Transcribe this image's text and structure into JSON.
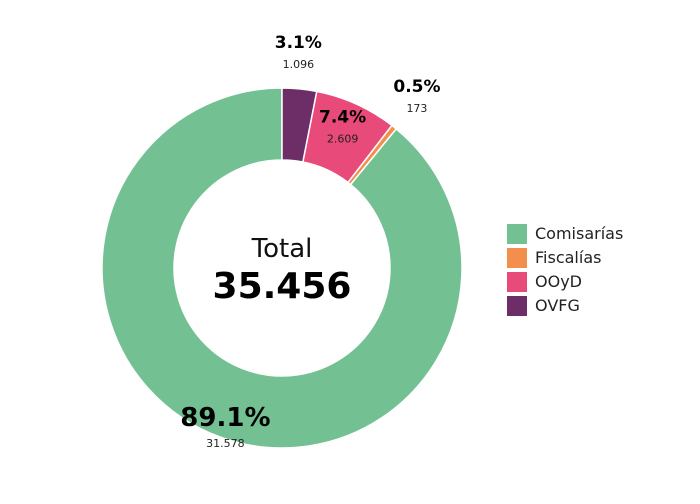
{
  "chart_data": {
    "type": "donut",
    "center_label": "Total",
    "total_text": "35.456",
    "total": 35456,
    "series": [
      {
        "name": "Comisarías",
        "value": 31578,
        "value_text": "31.578",
        "percent_text": "89.1%",
        "color": "#73c193"
      },
      {
        "name": "Fiscalías",
        "value": 173,
        "value_text": "173",
        "percent_text": "0.5%",
        "color": "#f28f4c"
      },
      {
        "name": "OOyD",
        "value": 2609,
        "value_text": "2.609",
        "percent_text": "7.4%",
        "color": "#e84a7a"
      },
      {
        "name": "OVFG",
        "value": 1096,
        "value_text": "1.096",
        "percent_text": "3.1%",
        "color": "#6d2e68"
      }
    ],
    "legend_position": "right"
  }
}
